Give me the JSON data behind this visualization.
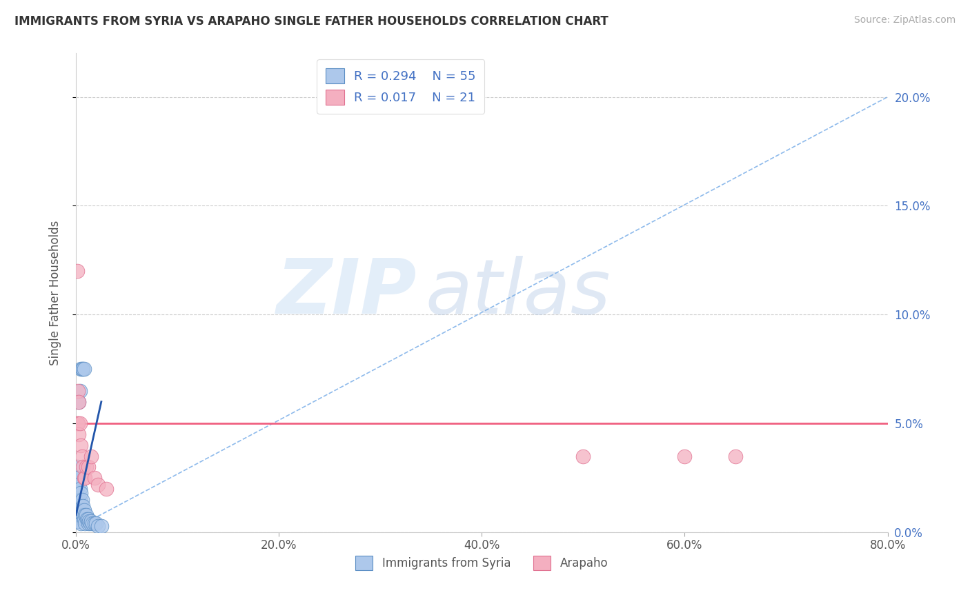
{
  "title": "IMMIGRANTS FROM SYRIA VS ARAPAHO SINGLE FATHER HOUSEHOLDS CORRELATION CHART",
  "source": "Source: ZipAtlas.com",
  "ylabel": "Single Father Households",
  "xlim": [
    0.0,
    0.8
  ],
  "ylim": [
    0.0,
    0.22
  ],
  "watermark_text": "ZIP",
  "watermark_text2": "atlas",
  "legend_r1": "R = 0.294",
  "legend_n1": "N = 55",
  "legend_r2": "R = 0.017",
  "legend_n2": "N = 21",
  "series1_label": "Immigrants from Syria",
  "series2_label": "Arapaho",
  "series1_color": "#adc8eb",
  "series2_color": "#f4afc0",
  "series1_edge": "#5b8ec4",
  "series2_edge": "#e07090",
  "trend1_dash_color": "#7aaee8",
  "trend1_solid_color": "#2255aa",
  "trend2_color": "#f06080",
  "blue_scatter_x": [
    0.0002,
    0.0003,
    0.0004,
    0.0005,
    0.0006,
    0.0007,
    0.0008,
    0.0009,
    0.001,
    0.001,
    0.001,
    0.001,
    0.001,
    0.001,
    0.002,
    0.002,
    0.002,
    0.002,
    0.003,
    0.003,
    0.003,
    0.003,
    0.004,
    0.004,
    0.004,
    0.005,
    0.005,
    0.005,
    0.005,
    0.006,
    0.006,
    0.007,
    0.007,
    0.008,
    0.008,
    0.009,
    0.009,
    0.01,
    0.011,
    0.012,
    0.012,
    0.013,
    0.014,
    0.015,
    0.016,
    0.018,
    0.02,
    0.022,
    0.025,
    0.005,
    0.006,
    0.007,
    0.008,
    0.004,
    0.003
  ],
  "blue_scatter_y": [
    0.025,
    0.02,
    0.015,
    0.018,
    0.022,
    0.01,
    0.012,
    0.008,
    0.03,
    0.025,
    0.02,
    0.015,
    0.01,
    0.005,
    0.025,
    0.018,
    0.012,
    0.008,
    0.022,
    0.015,
    0.01,
    0.005,
    0.02,
    0.015,
    0.008,
    0.018,
    0.012,
    0.008,
    0.004,
    0.015,
    0.01,
    0.012,
    0.008,
    0.01,
    0.006,
    0.008,
    0.004,
    0.008,
    0.006,
    0.006,
    0.004,
    0.005,
    0.004,
    0.005,
    0.004,
    0.004,
    0.004,
    0.003,
    0.003,
    0.075,
    0.075,
    0.075,
    0.075,
    0.065,
    0.06
  ],
  "pink_scatter_x": [
    0.001,
    0.001,
    0.002,
    0.002,
    0.003,
    0.003,
    0.004,
    0.005,
    0.006,
    0.007,
    0.008,
    0.009,
    0.01,
    0.012,
    0.015,
    0.018,
    0.022,
    0.03,
    0.5,
    0.6,
    0.65
  ],
  "pink_scatter_y": [
    0.12,
    0.05,
    0.065,
    0.05,
    0.06,
    0.045,
    0.05,
    0.04,
    0.035,
    0.03,
    0.025,
    0.025,
    0.03,
    0.03,
    0.035,
    0.025,
    0.022,
    0.02,
    0.035,
    0.035,
    0.035
  ],
  "xtick_vals": [
    0.0,
    0.2,
    0.4,
    0.6,
    0.8
  ],
  "xtick_labels": [
    "0.0%",
    "20.0%",
    "40.0%",
    "60.0%",
    "80.0%"
  ],
  "ytick_vals": [
    0.0,
    0.05,
    0.1,
    0.15,
    0.2
  ],
  "ytick_labels": [
    "0.0%",
    "5.0%",
    "10.0%",
    "15.0%",
    "20.0%"
  ]
}
